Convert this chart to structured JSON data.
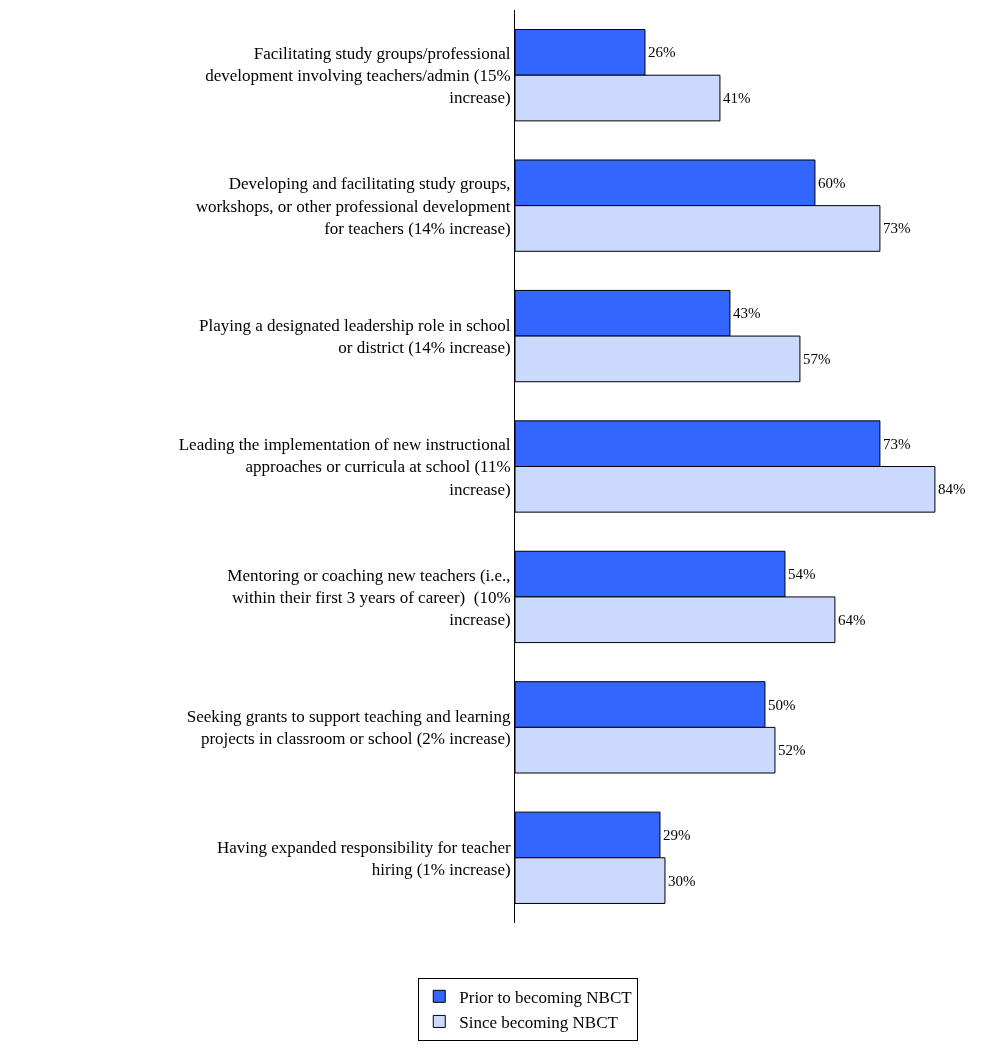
{
  "chart_data": {
    "type": "bar",
    "orientation": "horizontal",
    "legend": "bottom",
    "categories": [
      "Facilitating study groups/professional development involving teachers/admin (15% increase)",
      "Developing and facilitating study groups, workshops, or other professional development for teachers (14% increase)",
      "Playing a designated leadership role in school or district (14% increase)",
      "Leading the implementation of new instructional approaches or curricula at school (11% increase)",
      "Mentoring or coaching new teachers (i.e., within their first 3 years of career)  (10% increase)",
      "Seeking grants to support teaching and learning projects in classroom or school (2% increase)",
      "Having expanded responsibility for teacher hiring (1% increase)"
    ],
    "series": [
      {
        "name": "Prior to becoming NBCT",
        "color": "#3366ff",
        "values": [
          26,
          60,
          43,
          73,
          54,
          50,
          29
        ],
        "value_labels": [
          "26%",
          "60%",
          "43%",
          "73%",
          "54%",
          "50%",
          "29%"
        ]
      },
      {
        "name": "Since becoming NBCT",
        "color": "#ccd9ff",
        "values": [
          41,
          73,
          57,
          84,
          64,
          52,
          30
        ],
        "value_labels": [
          "41%",
          "73%",
          "57%",
          "84%",
          "64%",
          "52%",
          "30%"
        ]
      }
    ]
  }
}
